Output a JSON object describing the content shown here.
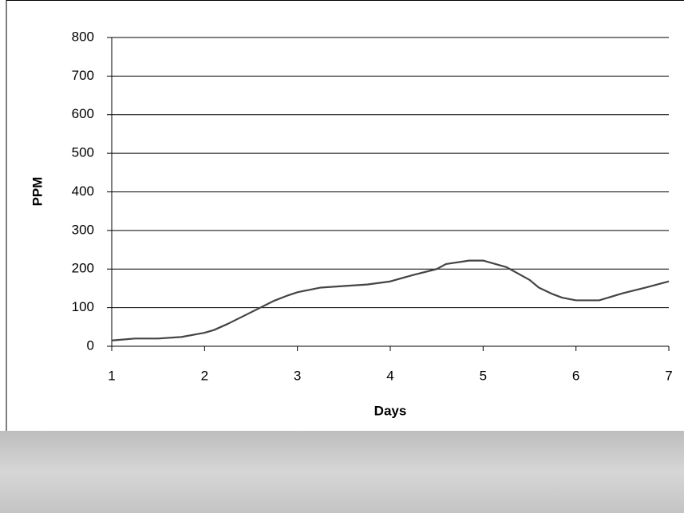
{
  "chart_data": {
    "type": "line",
    "x_label": "Days",
    "y_label": "PPM",
    "series": [
      {
        "color": "#444444",
        "x": [
          1,
          1.25,
          1.5,
          1.75,
          2,
          2.1,
          2.25,
          2.5,
          2.75,
          2.9,
          3,
          3.25,
          3.5,
          3.75,
          4,
          4.25,
          4.5,
          4.6,
          4.85,
          5,
          5.25,
          5.5,
          5.6,
          5.75,
          5.85,
          6,
          6.25,
          6.5,
          6.75,
          7
        ],
        "values": [
          15,
          20,
          20,
          24,
          35,
          42,
          58,
          88,
          118,
          132,
          140,
          152,
          156,
          160,
          168,
          185,
          200,
          213,
          222,
          222,
          205,
          172,
          152,
          135,
          126,
          119,
          119,
          137,
          152,
          168
        ]
      }
    ],
    "xlim": [
      1,
      7
    ],
    "xticks": [
      1,
      2,
      3,
      4,
      5,
      6,
      7
    ],
    "ylim": [
      0,
      800
    ],
    "yticks": [
      0,
      100,
      200,
      300,
      400,
      500,
      600,
      700,
      800
    ],
    "grid": true
  }
}
